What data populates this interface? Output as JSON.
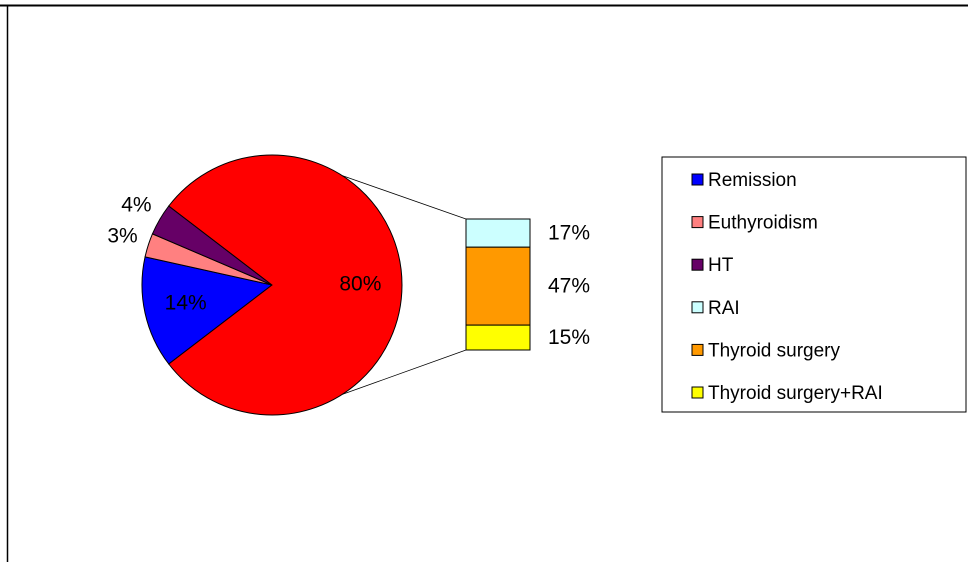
{
  "chart_data": {
    "type": "pie",
    "categories": [
      "Remission",
      "Euthyroidism",
      "HT",
      null
    ],
    "values": [
      14,
      3,
      4,
      80
    ],
    "value_labels": [
      "14%",
      "3%",
      "4%",
      "80%"
    ],
    "colors": [
      "#0000ff",
      "#ff8080",
      "#660066",
      "#ff0000"
    ],
    "breakout": {
      "categories": [
        "RAI",
        "Thyroid surgery",
        "Thyroid surgery+RAI"
      ],
      "values": [
        17,
        47,
        15
      ],
      "value_labels": [
        "17%",
        "47%",
        "15%"
      ],
      "colors": [
        "#ccffff",
        "#ff9900",
        "#ffff00"
      ]
    }
  }
}
